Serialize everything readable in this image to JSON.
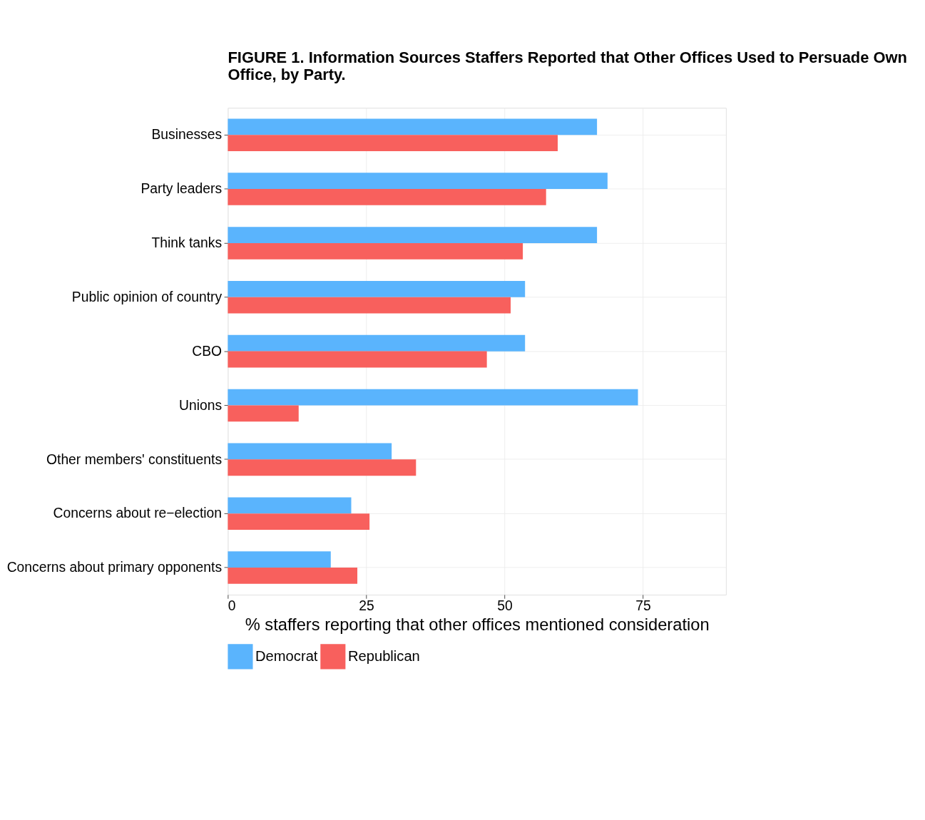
{
  "chart_data": {
    "type": "bar",
    "orientation": "horizontal",
    "title": "FIGURE 1.  Information Sources Staffers Reported that Other Offices Used to Persuade Own Office, by Party.",
    "xlabel": "% staffers reporting that other offices mentioned consideration",
    "categories": [
      "Businesses",
      "Party leaders",
      "Think tanks",
      "Public opinion of country",
      "CBO",
      "Unions",
      "Other members' constituents",
      "Concerns about re−election",
      "Concerns about primary opponents"
    ],
    "series": [
      {
        "name": "Democrat",
        "color": "#5ab4fd",
        "values": [
          66.7,
          68.6,
          66.7,
          53.7,
          53.7,
          74.1,
          29.6,
          22.3,
          18.6
        ]
      },
      {
        "name": "Republican",
        "color": "#f8605d",
        "values": [
          59.6,
          57.5,
          53.3,
          51.1,
          46.8,
          12.8,
          34.0,
          25.6,
          23.4
        ]
      }
    ],
    "xlim": [
      0,
      90
    ],
    "xticks": [
      0,
      25,
      50,
      75
    ],
    "grid": true,
    "legend": "bottom"
  }
}
